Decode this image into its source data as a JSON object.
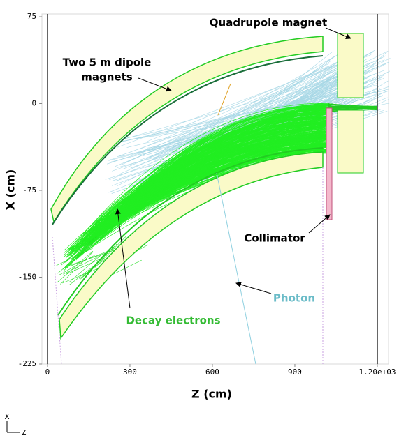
{
  "chart_data": {
    "type": "event-display",
    "xlabel": "Z (cm)",
    "ylabel": "X (cm)",
    "xlim": [
      -20,
      1240
    ],
    "ylim": [
      -225,
      75
    ],
    "xticks": [
      0,
      300,
      600,
      900,
      {
        "value": 1200,
        "label": "1.20e+03"
      }
    ],
    "yticks": [
      75,
      0,
      -75,
      -150,
      -225
    ],
    "grid": false,
    "annotations": {
      "quadrupole": "Quadrupole magnet",
      "dipole": [
        "Two 5 m dipole",
        "magnets"
      ],
      "collimator": "Collimator",
      "photon": "Photon",
      "electrons": "Decay electrons"
    },
    "axes_icon": {
      "up": "X",
      "right": "Z"
    }
  }
}
